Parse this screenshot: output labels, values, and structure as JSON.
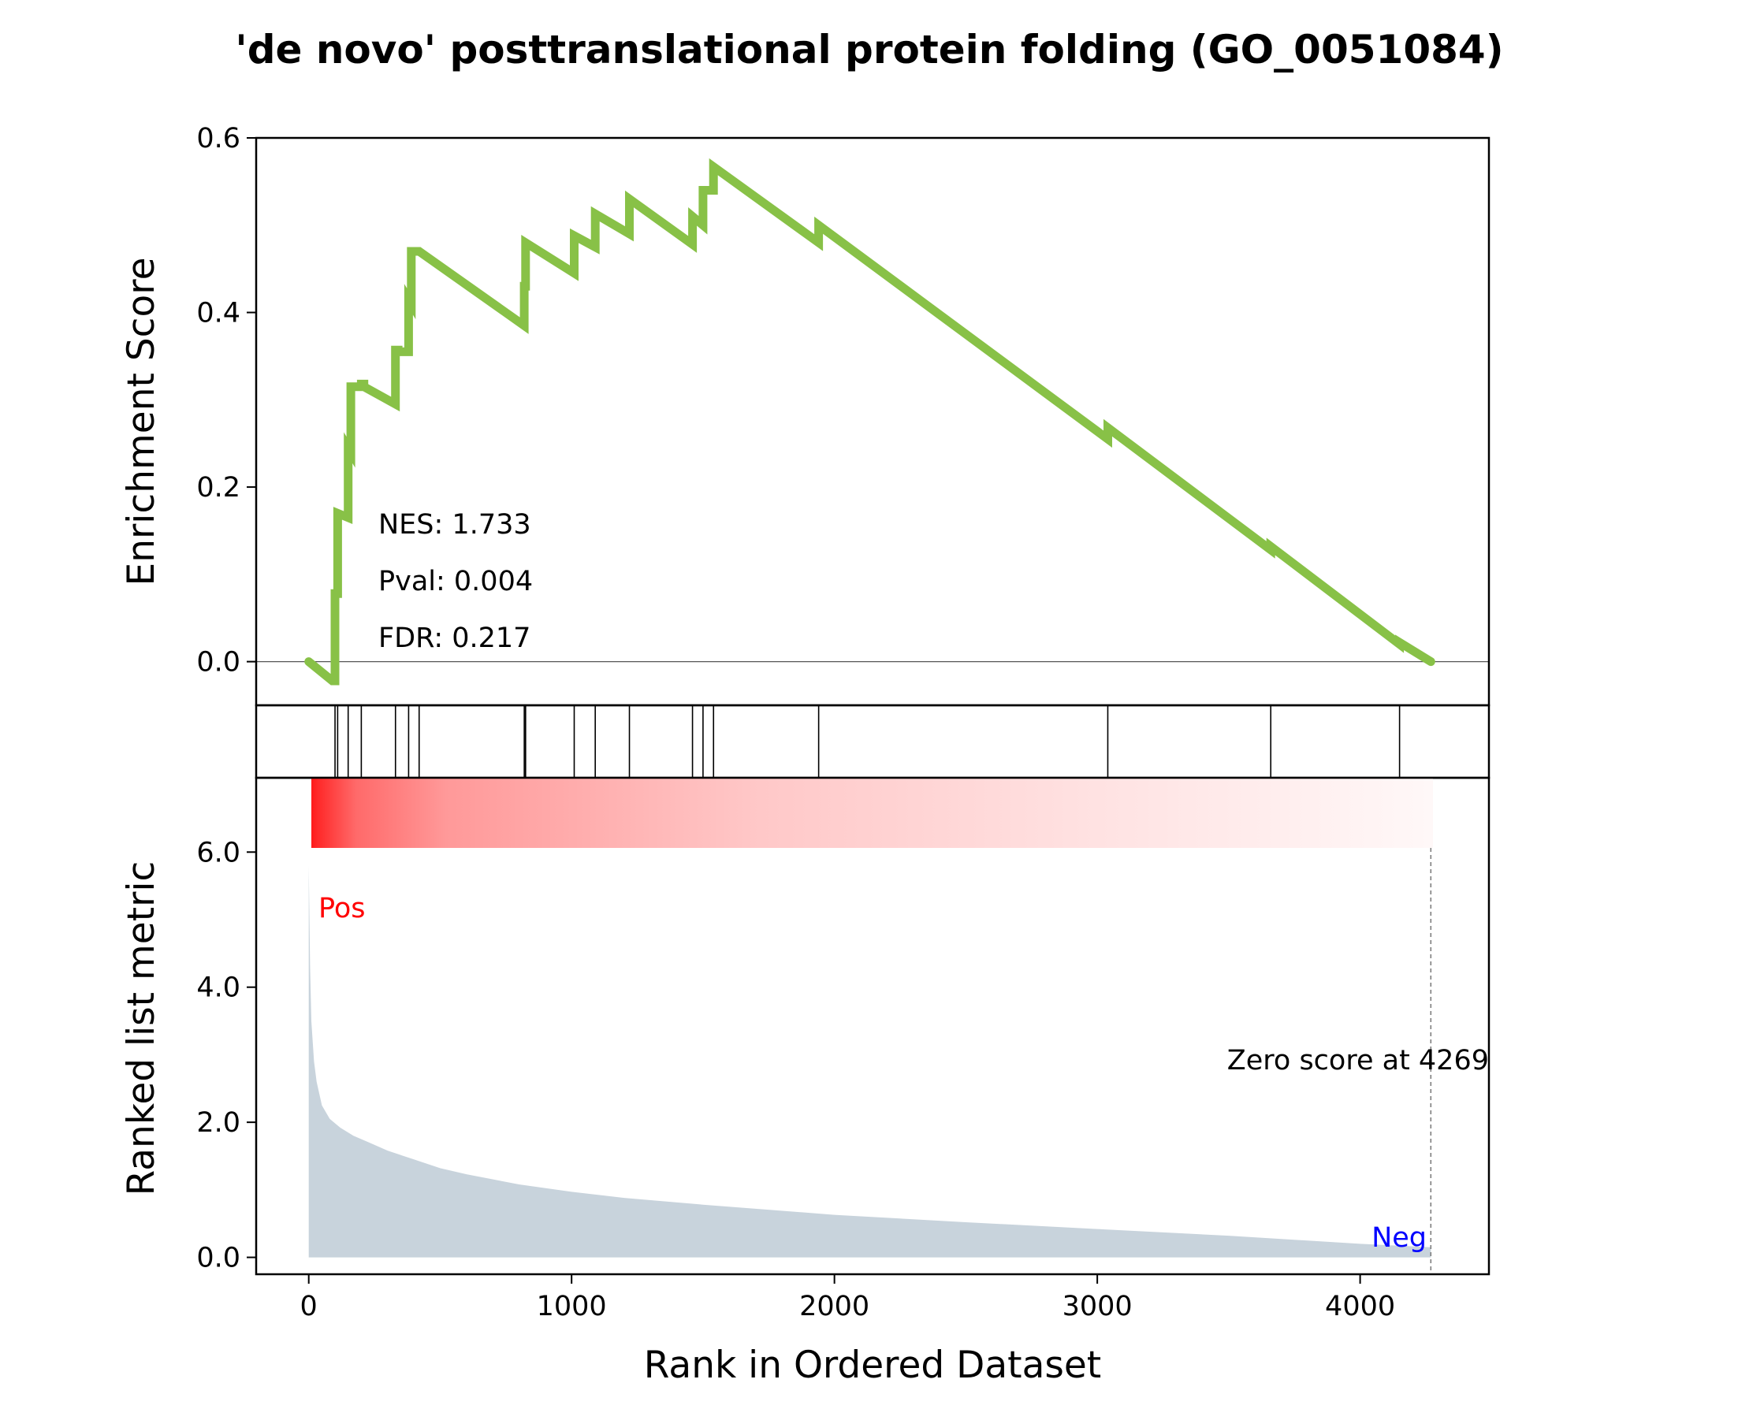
{
  "figure": {
    "title": "'de novo' posttranslational protein folding (GO_0051084)"
  },
  "colors": {
    "es_line": "#88c147",
    "hits": "#000000",
    "metric_fill": "#c8d3dc",
    "pos_label": "#ff0000",
    "neg_label": "#0000ff",
    "heat_high": "#ff0000",
    "heat_low": "#ffffff"
  },
  "stats": {
    "nes": "NES: 1.733",
    "pval": "Pval: 0.004",
    "fdr": "FDR: 0.217"
  },
  "labels": {
    "pos": "Pos",
    "neg": "Neg",
    "zero_score": "Zero score at 4269"
  },
  "chart_data": [
    {
      "type": "line",
      "panel": "enrichment",
      "ylabel": "Enrichment Score",
      "xlim": [
        -200,
        4490
      ],
      "ylim": [
        -0.05,
        0.6
      ],
      "yticks": [
        0.0,
        0.2,
        0.4,
        0.6
      ],
      "ytick_labels": [
        "0.0",
        "0.2",
        "0.4",
        "0.6"
      ],
      "hline": 0.0,
      "series": [
        {
          "x": [
            0,
            90,
            100,
            100,
            110,
            110,
            150,
            150,
            160,
            160,
            200,
            200,
            210,
            210,
            330,
            330,
            340,
            340,
            380,
            380,
            390,
            390,
            420,
            420,
            820,
            820,
            825,
            825,
            1010,
            1010,
            1090,
            1090,
            1220,
            1220,
            1460,
            1460,
            1500,
            1500,
            1540,
            1540,
            1940,
            1940,
            3040,
            3040,
            3660,
            3660,
            4150,
            4150,
            4269
          ],
          "y": [
            0.0,
            -0.022,
            -0.022,
            0.078,
            0.078,
            0.17,
            0.165,
            0.245,
            0.24,
            0.315,
            0.315,
            0.318,
            0.318,
            0.315,
            0.295,
            0.357,
            0.357,
            0.355,
            0.355,
            0.415,
            0.41,
            0.47,
            0.47,
            0.47,
            0.385,
            0.43,
            0.43,
            0.48,
            0.445,
            0.488,
            0.475,
            0.513,
            0.49,
            0.53,
            0.478,
            0.51,
            0.5,
            0.54,
            0.54,
            0.567,
            0.48,
            0.5,
            0.255,
            0.268,
            0.128,
            0.132,
            0.02,
            0.022,
            0.0
          ]
        }
      ]
    },
    {
      "type": "scatter",
      "panel": "hits",
      "description_free": true,
      "x": [
        100,
        110,
        150,
        200,
        330,
        380,
        420,
        820,
        825,
        1010,
        1090,
        1220,
        1460,
        1500,
        1540,
        1940,
        3040,
        3660,
        4150
      ]
    },
    {
      "type": "area",
      "panel": "ranked_metric",
      "xlabel": "Rank in Ordered Dataset",
      "ylabel": "Ranked list metric",
      "xlim": [
        -200,
        4490
      ],
      "ylim": [
        -0.25,
        7.1
      ],
      "xticks": [
        0,
        1000,
        2000,
        3000,
        4000
      ],
      "xtick_labels": [
        "0",
        "1000",
        "2000",
        "3000",
        "4000"
      ],
      "yticks": [
        0.0,
        2.0,
        4.0,
        6.0
      ],
      "ytick_labels": [
        "0.0",
        "2.0",
        "4.0",
        "6.0"
      ],
      "zero_score_rank": 4269,
      "series": [
        {
          "x": [
            0,
            5,
            10,
            20,
            30,
            50,
            80,
            120,
            170,
            230,
            300,
            400,
            500,
            600,
            800,
            1000,
            1200,
            1500,
            2000,
            2500,
            3000,
            3500,
            4000,
            4269
          ],
          "y": [
            5.8,
            4.3,
            3.5,
            2.9,
            2.6,
            2.25,
            2.05,
            1.92,
            1.8,
            1.7,
            1.58,
            1.45,
            1.32,
            1.23,
            1.08,
            0.97,
            0.88,
            0.78,
            0.63,
            0.52,
            0.42,
            0.32,
            0.2,
            0.15
          ]
        }
      ]
    }
  ]
}
